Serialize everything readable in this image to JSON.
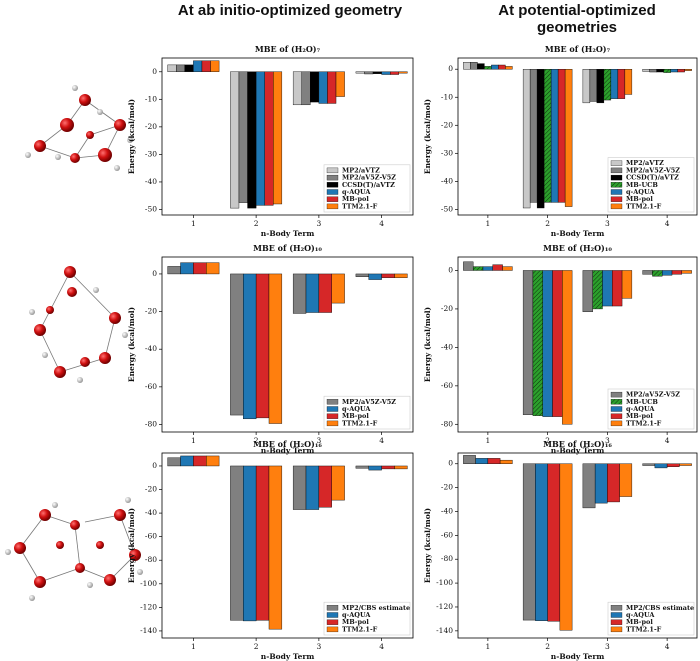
{
  "column_titles": [
    "At ab initio-optimized geometry",
    "At potential-optimized geometries"
  ],
  "chart_data": [
    {
      "type": "bar",
      "title": "MBE of (H₂O)₇",
      "xlabel": "n-Body Term",
      "ylabel": "Energy (kcal/mol)",
      "categories": [
        "1",
        "2",
        "3",
        "4"
      ],
      "ylim": [
        -52,
        5
      ],
      "yticks": [
        0,
        -10,
        -20,
        -30,
        -40,
        -50
      ],
      "legend": "lower right",
      "series": [
        {
          "name": "MP2/aVTZ",
          "color": "#c8c8c8",
          "values": [
            2.5,
            -49.5,
            -12,
            -0.5
          ]
        },
        {
          "name": "MP2/aV5Z-V5Z",
          "color": "#808080",
          "values": [
            2.5,
            -47.5,
            -12,
            -0.8
          ]
        },
        {
          "name": "CCSD(T)/aVTZ",
          "color": "#000000",
          "values": [
            2.5,
            -49.5,
            -11,
            -0.7
          ]
        },
        {
          "name": "q-AQUA",
          "color": "#1f77b4",
          "values": [
            4,
            -48.5,
            -11.5,
            -1
          ]
        },
        {
          "name": "MB-pol",
          "color": "#d62728",
          "values": [
            4,
            -48.5,
            -11.5,
            -1
          ]
        },
        {
          "name": "TTM2.1-F",
          "color": "#ff7f0e",
          "values": [
            4,
            -48,
            -9,
            -0.5
          ]
        }
      ]
    },
    {
      "type": "bar",
      "title": "MBE of (H₂O)₇",
      "xlabel": "n-Body Term",
      "ylabel": "Energy (kcal/mol)",
      "categories": [
        "1",
        "2",
        "3",
        "4"
      ],
      "ylim": [
        -52,
        4
      ],
      "yticks": [
        0,
        -10,
        -20,
        -30,
        -40,
        -50
      ],
      "legend": "lower right",
      "series": [
        {
          "name": "MP2/aVTZ",
          "color": "#c8c8c8",
          "values": [
            2.5,
            -49.5,
            -12,
            -0.8
          ]
        },
        {
          "name": "MP2/aV5Z-V5Z",
          "color": "#808080",
          "values": [
            2.5,
            -47.5,
            -11.5,
            -1
          ]
        },
        {
          "name": "CCSD(T)/aVTZ",
          "color": "#000000",
          "values": [
            2,
            -49.5,
            -12,
            -1
          ]
        },
        {
          "name": "MB-UCB",
          "color": "#2ca02c",
          "hatch": "////",
          "values": [
            1,
            -47.5,
            -11,
            -1.2
          ]
        },
        {
          "name": "q-AQUA",
          "color": "#1f77b4",
          "values": [
            1.5,
            -47.5,
            -10.5,
            -1
          ]
        },
        {
          "name": "MB-pol",
          "color": "#d62728",
          "values": [
            1.5,
            -47.5,
            -10.5,
            -1
          ]
        },
        {
          "name": "TTM2.1-F",
          "color": "#ff7f0e",
          "values": [
            1,
            -49,
            -9,
            -0.5
          ]
        }
      ]
    },
    {
      "type": "bar",
      "title": "MBE of (H₂O)₁₀",
      "xlabel": "n-Body Term",
      "ylabel": "Energy (kcal/mol)",
      "categories": [
        "1",
        "2",
        "3",
        "4"
      ],
      "ylim": [
        -84,
        9
      ],
      "yticks": [
        0,
        -20,
        -40,
        -60,
        -80
      ],
      "legend": "lower right",
      "series": [
        {
          "name": "MP2/aV5Z-V5Z",
          "color": "#808080",
          "values": [
            4,
            -75,
            -21,
            -1.5
          ]
        },
        {
          "name": "q-AQUA",
          "color": "#1f77b4",
          "values": [
            6,
            -77,
            -20.5,
            -3
          ]
        },
        {
          "name": "MB-pol",
          "color": "#d62728",
          "values": [
            6,
            -76.5,
            -20.5,
            -2
          ]
        },
        {
          "name": "TTM2.1-F",
          "color": "#ff7f0e",
          "values": [
            6,
            -79.5,
            -15.5,
            -2
          ]
        }
      ]
    },
    {
      "type": "bar",
      "title": "MBE of (H₂O)₁₀",
      "xlabel": "n-Body Term",
      "ylabel": "Energy (kcal/mol)",
      "categories": [
        "1",
        "2",
        "3",
        "4"
      ],
      "ylim": [
        -84,
        7
      ],
      "yticks": [
        0,
        -20,
        -40,
        -60,
        -80
      ],
      "legend": "lower right",
      "series": [
        {
          "name": "MP2/aV5Z-V5Z",
          "color": "#808080",
          "values": [
            4.5,
            -75,
            -21.5,
            -2
          ]
        },
        {
          "name": "MB-UCB",
          "color": "#2ca02c",
          "hatch": "////",
          "values": [
            2,
            -75.5,
            -20,
            -3
          ]
        },
        {
          "name": "q-AQUA",
          "color": "#1f77b4",
          "values": [
            2,
            -76,
            -18.5,
            -2.5
          ]
        },
        {
          "name": "MB-pol",
          "color": "#d62728",
          "values": [
            3,
            -76,
            -18.5,
            -2
          ]
        },
        {
          "name": "TTM2.1-F",
          "color": "#ff7f0e",
          "values": [
            2,
            -80,
            -14.5,
            -1.5
          ]
        }
      ]
    },
    {
      "type": "bar",
      "title": "MBE of (H₂O)₁₆",
      "xlabel": "n-Body Term",
      "ylabel": "Energy (kcal/mol)",
      "categories": [
        "1",
        "2",
        "3",
        "4"
      ],
      "ylim": [
        -146,
        11
      ],
      "yticks": [
        0,
        -20,
        -40,
        -60,
        -80,
        -100,
        -120,
        -140
      ],
      "legend": "lower right",
      "series": [
        {
          "name": "MP2/CBS estimate",
          "color": "#808080",
          "values": [
            7,
            -131,
            -37,
            -2
          ]
        },
        {
          "name": "q-AQUA",
          "color": "#1f77b4",
          "values": [
            8.5,
            -131.5,
            -37,
            -3.5
          ]
        },
        {
          "name": "MB-pol",
          "color": "#d62728",
          "values": [
            8.5,
            -131,
            -35,
            -2.5
          ]
        },
        {
          "name": "TTM2.1-F",
          "color": "#ff7f0e",
          "values": [
            8.5,
            -138.5,
            -29,
            -2.5
          ]
        }
      ]
    },
    {
      "type": "bar",
      "title": "MBE of (H₂O)₁₆",
      "xlabel": "n-Body Term",
      "ylabel": "Energy (kcal/mol)",
      "categories": [
        "1",
        "2",
        "3",
        "4"
      ],
      "ylim": [
        -146,
        9
      ],
      "yticks": [
        0,
        -20,
        -40,
        -60,
        -80,
        -100,
        -120,
        -140
      ],
      "legend": "lower right",
      "series": [
        {
          "name": "MP2/CBS estimate",
          "color": "#808080",
          "values": [
            7,
            -131,
            -37,
            -1.5
          ]
        },
        {
          "name": "q-AQUA",
          "color": "#1f77b4",
          "values": [
            4.5,
            -131.5,
            -33,
            -3.5
          ]
        },
        {
          "name": "MB-pol",
          "color": "#d62728",
          "values": [
            4.5,
            -132,
            -32,
            -2.5
          ]
        },
        {
          "name": "TTM2.1-F",
          "color": "#ff7f0e",
          "values": [
            3,
            -139.5,
            -27.5,
            -1.5
          ]
        }
      ]
    }
  ]
}
